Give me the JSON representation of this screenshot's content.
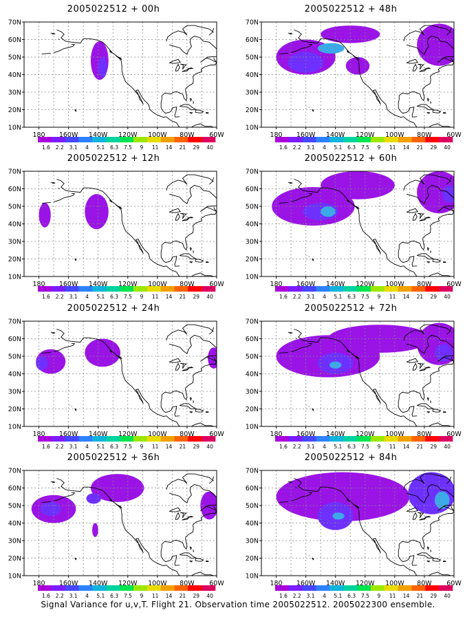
{
  "panels": [
    {
      "title": "2005022512 + 00h",
      "blobs": [
        {
          "x": -139,
          "y": 48,
          "rx": 6,
          "ry": 11,
          "level": 0
        },
        {
          "x": -137,
          "y": 44,
          "rx": 3,
          "ry": 6,
          "level": 1
        }
      ]
    },
    {
      "title": "2005022512 + 48h",
      "blobs": [
        {
          "x": -160,
          "y": 50,
          "rx": 20,
          "ry": 10,
          "level": 0
        },
        {
          "x": -130,
          "y": 63,
          "rx": 20,
          "ry": 5,
          "level": 0
        },
        {
          "x": -160,
          "y": 47,
          "rx": 12,
          "ry": 6,
          "level": 1
        },
        {
          "x": -125,
          "y": 45,
          "rx": 8,
          "ry": 5,
          "level": 0
        },
        {
          "x": -143,
          "y": 55,
          "rx": 9,
          "ry": 3,
          "level": 2
        },
        {
          "x": -70,
          "y": 57,
          "rx": 15,
          "ry": 12,
          "level": 0
        }
      ]
    },
    {
      "title": "2005022512 + 12h",
      "blobs": [
        {
          "x": -141,
          "y": 47,
          "rx": 8,
          "ry": 10,
          "level": 0
        },
        {
          "x": -176,
          "y": 45,
          "rx": 4,
          "ry": 7,
          "level": 0
        }
      ]
    },
    {
      "title": "2005022512 + 60h",
      "blobs": [
        {
          "x": -155,
          "y": 50,
          "rx": 28,
          "ry": 11,
          "level": 0
        },
        {
          "x": -125,
          "y": 62,
          "rx": 25,
          "ry": 8,
          "level": 0
        },
        {
          "x": -150,
          "y": 47,
          "rx": 12,
          "ry": 5,
          "level": 1
        },
        {
          "x": -145,
          "y": 47,
          "rx": 5,
          "ry": 3,
          "level": 2
        },
        {
          "x": -70,
          "y": 58,
          "rx": 15,
          "ry": 12,
          "level": 0
        },
        {
          "x": -63,
          "y": 57,
          "rx": 5,
          "ry": 5,
          "level": 1
        }
      ]
    },
    {
      "title": "2005022512 + 24h",
      "blobs": [
        {
          "x": -172,
          "y": 47,
          "rx": 10,
          "ry": 7,
          "level": 0
        },
        {
          "x": -178,
          "y": 46,
          "rx": 4,
          "ry": 4,
          "level": 1
        },
        {
          "x": -137,
          "y": 52,
          "rx": 12,
          "ry": 8,
          "level": 0
        },
        {
          "x": -62,
          "y": 49,
          "rx": 4,
          "ry": 6,
          "level": 0
        }
      ]
    },
    {
      "title": "2005022512 + 72h",
      "blobs": [
        {
          "x": -145,
          "y": 50,
          "rx": 35,
          "ry": 12,
          "level": 0
        },
        {
          "x": -110,
          "y": 60,
          "rx": 35,
          "ry": 8,
          "level": 0
        },
        {
          "x": -140,
          "y": 46,
          "rx": 12,
          "ry": 6,
          "level": 1
        },
        {
          "x": -140,
          "y": 45,
          "rx": 4,
          "ry": 2,
          "level": 2
        },
        {
          "x": -70,
          "y": 57,
          "rx": 15,
          "ry": 12,
          "level": 0
        },
        {
          "x": -67,
          "y": 52,
          "rx": 6,
          "ry": 5,
          "level": 1
        }
      ]
    },
    {
      "title": "2005022512 + 36h",
      "blobs": [
        {
          "x": -170,
          "y": 48,
          "rx": 15,
          "ry": 8,
          "level": 0
        },
        {
          "x": -172,
          "y": 48,
          "rx": 7,
          "ry": 4,
          "level": 1
        },
        {
          "x": -127,
          "y": 60,
          "rx": 18,
          "ry": 8,
          "level": 0
        },
        {
          "x": -143,
          "y": 54,
          "rx": 5,
          "ry": 3,
          "level": 1
        },
        {
          "x": -142,
          "y": 36,
          "rx": 2,
          "ry": 4,
          "level": 0
        },
        {
          "x": -65,
          "y": 50,
          "rx": 6,
          "ry": 8,
          "level": 0
        }
      ]
    },
    {
      "title": "2005022512 + 84h",
      "blobs": [
        {
          "x": -135,
          "y": 55,
          "rx": 45,
          "ry": 14,
          "level": 0
        },
        {
          "x": -140,
          "y": 44,
          "rx": 12,
          "ry": 8,
          "level": 1
        },
        {
          "x": -138,
          "y": 44,
          "rx": 4,
          "ry": 2,
          "level": 2
        },
        {
          "x": -75,
          "y": 57,
          "rx": 16,
          "ry": 12,
          "level": 1
        },
        {
          "x": -68,
          "y": 53,
          "rx": 5,
          "ry": 5,
          "level": 2
        }
      ]
    }
  ],
  "map": {
    "lon_range": [
      -190,
      -60
    ],
    "lat_range": [
      10,
      70
    ],
    "lat_ticks": [
      "10N",
      "20N",
      "30N",
      "40N",
      "50N",
      "60N",
      "70N"
    ],
    "lon_ticks": [
      "180",
      "160W",
      "140W",
      "120W",
      "100W",
      "80W",
      "60W"
    ],
    "grid": true
  },
  "colorbar": {
    "labels": [
      "1.6",
      "2.2",
      "3.1",
      "4",
      "5.1",
      "6.3",
      "7.5",
      "9",
      "11",
      "14",
      "21",
      "29",
      "40"
    ],
    "colors": [
      "#aa00dc",
      "#7b1cff",
      "#4646ff",
      "#2d82ff",
      "#11b4dc",
      "#00d2a0",
      "#00e450",
      "#9ce600",
      "#e8dc00",
      "#f0a000",
      "#ff6200",
      "#ff0000",
      "#dc0060"
    ]
  },
  "shading_colors": [
    "#9a14e6",
    "#6e30ff",
    "#3caae8"
  ],
  "caption": "Signal Variance for u,v,T. Flight 21. Observation time 2005022512. 2005022300 ensemble."
}
